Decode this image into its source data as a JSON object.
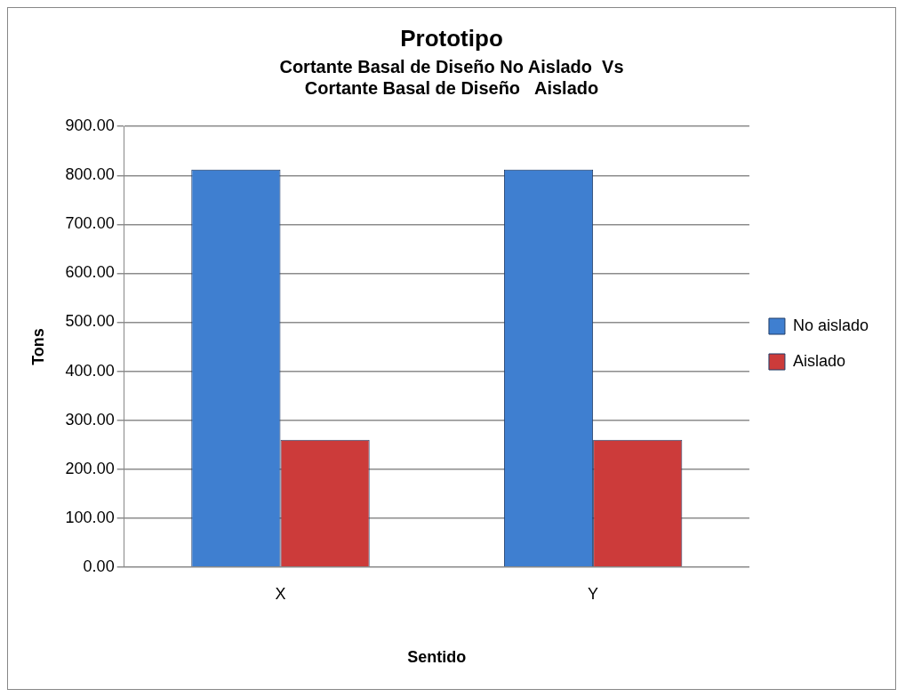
{
  "chart_data": {
    "type": "bar",
    "title": "Prototipo",
    "subtitle": "Cortante Basal de Diseño No Aislado  Vs\nCortante Basal de Diseño   Aislado",
    "xlabel": "Sentido",
    "ylabel": "Tons",
    "categories": [
      "X",
      "Y"
    ],
    "series": [
      {
        "name": "No aislado",
        "color": "#3f7fd0",
        "values": [
          812,
          812
        ]
      },
      {
        "name": "Aislado",
        "color": "#cc3b3a",
        "values": [
          260,
          260
        ]
      }
    ],
    "ylim": [
      0,
      900
    ],
    "yticks": [
      {
        "value": 0,
        "label": "0.00"
      },
      {
        "value": 100,
        "label": "100.00"
      },
      {
        "value": 200,
        "label": "200.00"
      },
      {
        "value": 300,
        "label": "300.00"
      },
      {
        "value": 400,
        "label": "400.00"
      },
      {
        "value": 500,
        "label": "500.00"
      },
      {
        "value": 600,
        "label": "600.00"
      },
      {
        "value": 700,
        "label": "700.00"
      },
      {
        "value": 800,
        "label": "800.00"
      },
      {
        "value": 900,
        "label": "900.00"
      }
    ],
    "grid": "y",
    "legend": "right"
  }
}
